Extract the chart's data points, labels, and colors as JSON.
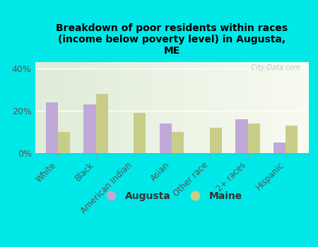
{
  "title": "Breakdown of poor residents within races\n(income below poverty level) in Augusta,\nME",
  "categories": [
    "White",
    "Black",
    "American Indian",
    "Asian",
    "Other race",
    "2+ races",
    "Hispanic"
  ],
  "augusta_values": [
    24,
    23,
    0,
    14,
    0,
    16,
    5
  ],
  "maine_values": [
    10,
    28,
    19,
    10,
    12,
    14,
    13
  ],
  "augusta_color": "#c0a8d8",
  "maine_color": "#c8ce88",
  "background_outer": "#00e8e8",
  "ylim": [
    0,
    43
  ],
  "yticks": [
    0,
    20,
    40
  ],
  "ytick_labels": [
    "0%",
    "20%",
    "40%"
  ],
  "bar_width": 0.32,
  "legend_labels": [
    "Augusta",
    "Maine"
  ],
  "watermark": "  City-Data.com"
}
